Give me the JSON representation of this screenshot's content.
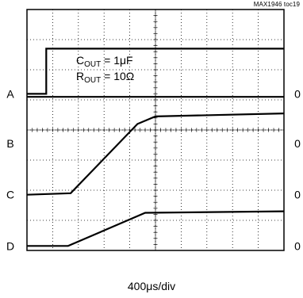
{
  "chart_data": {
    "type": "line",
    "title": "",
    "source_tag": "MAX1946 toc19",
    "annotation": {
      "line1_main": "C",
      "line1_sub": "OUT",
      "line1_rest": " = 1μF",
      "line2_main": "R",
      "line2_sub": "OUT",
      "line2_rest": " = 10Ω"
    },
    "xlabel": "400μs/div",
    "grid": true,
    "divisions": {
      "x": 10,
      "y": 8
    },
    "channels": [
      {
        "name": "A",
        "zero_label": "0",
        "zero_div": 5.2
      },
      {
        "name": "B",
        "zero_label": "0",
        "zero_div": 3.55
      },
      {
        "name": "C",
        "zero_label": "0",
        "zero_div": 1.85
      },
      {
        "name": "D",
        "zero_label": "0",
        "zero_div": 0.15
      }
    ],
    "series": [
      {
        "name": "A",
        "x": [
          0,
          0.75,
          0.75,
          10
        ],
        "y": [
          5.2,
          5.2,
          6.7,
          6.7
        ]
      },
      {
        "name": "B",
        "x": [
          0,
          10
        ],
        "y": [
          5.1,
          5.1
        ]
      },
      {
        "name": "C",
        "x": [
          0,
          1.7,
          4.3,
          5.0,
          10
        ],
        "y": [
          1.85,
          1.9,
          4.2,
          4.45,
          4.55
        ]
      },
      {
        "name": "D",
        "x": [
          0,
          1.6,
          4.6,
          10
        ],
        "y": [
          0.15,
          0.15,
          1.25,
          1.3
        ]
      }
    ]
  }
}
